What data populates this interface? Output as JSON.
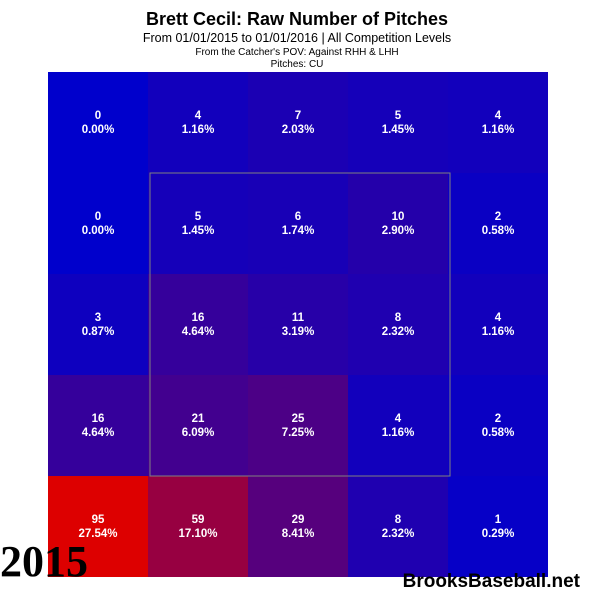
{
  "header": {
    "title": "Brett Cecil: Raw Number of Pitches",
    "subtitle": "From 01/01/2015 to 01/01/2016 | All Competition Levels",
    "pov": "From the Catcher's POV:  Against RHH & LHH",
    "pitches": "Pitches:  CU"
  },
  "year_label": "2015",
  "watermark": "BrooksBaseball.net",
  "colors": {
    "low": "#0000cc",
    "high": "#dd0000",
    "strike_zone_border": "#808080",
    "label_text": "#ffffff"
  },
  "chart_data": {
    "type": "heatmap",
    "rows": 5,
    "cols": 5,
    "cells": [
      [
        {
          "count": "0",
          "pct": "0.00%"
        },
        {
          "count": "4",
          "pct": "1.16%"
        },
        {
          "count": "7",
          "pct": "2.03%"
        },
        {
          "count": "5",
          "pct": "1.45%"
        },
        {
          "count": "4",
          "pct": "1.16%"
        }
      ],
      [
        {
          "count": "0",
          "pct": "0.00%"
        },
        {
          "count": "5",
          "pct": "1.45%"
        },
        {
          "count": "6",
          "pct": "1.74%"
        },
        {
          "count": "10",
          "pct": "2.90%"
        },
        {
          "count": "2",
          "pct": "0.58%"
        }
      ],
      [
        {
          "count": "3",
          "pct": "0.87%"
        },
        {
          "count": "16",
          "pct": "4.64%"
        },
        {
          "count": "11",
          "pct": "3.19%"
        },
        {
          "count": "8",
          "pct": "2.32%"
        },
        {
          "count": "4",
          "pct": "1.16%"
        }
      ],
      [
        {
          "count": "16",
          "pct": "4.64%"
        },
        {
          "count": "21",
          "pct": "6.09%"
        },
        {
          "count": "25",
          "pct": "7.25%"
        },
        {
          "count": "4",
          "pct": "1.16%"
        },
        {
          "count": "2",
          "pct": "0.58%"
        }
      ],
      [
        {
          "count": "95",
          "pct": "27.54%"
        },
        {
          "count": "59",
          "pct": "17.10%"
        },
        {
          "count": "29",
          "pct": "8.41%"
        },
        {
          "count": "8",
          "pct": "2.32%"
        },
        {
          "count": "1",
          "pct": "0.29%"
        }
      ]
    ],
    "strike_zone": {
      "rows": [
        1,
        3
      ],
      "cols": [
        1,
        3
      ]
    }
  }
}
